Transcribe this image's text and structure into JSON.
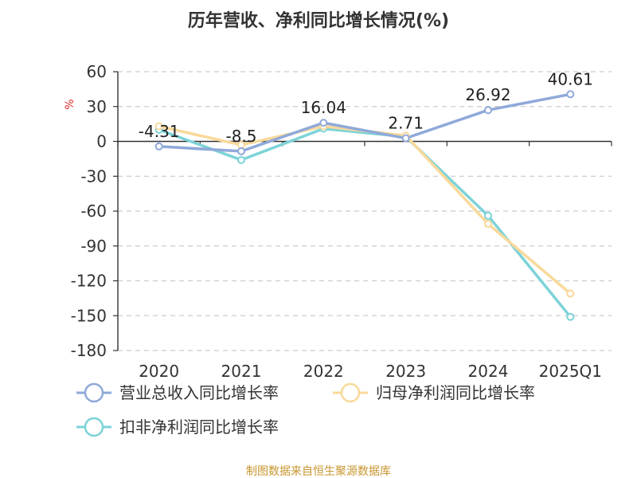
{
  "chart_data": {
    "type": "line",
    "title": "历年营收、净利同比增长情况(%)",
    "ylabel": "%",
    "categories": [
      "2020",
      "2021",
      "2022",
      "2023",
      "2024",
      "2025Q1"
    ],
    "ylim": [
      -180,
      60
    ],
    "yticks": [
      60,
      30,
      0,
      -30,
      -60,
      -90,
      -120,
      -150,
      -180
    ],
    "grid": true,
    "legend_position": "bottom",
    "series": [
      {
        "name": "营业总收入同比增长率",
        "color": "#8fa9d9",
        "values": [
          -4.31,
          -8.5,
          16.04,
          2.71,
          26.92,
          40.61
        ],
        "labels": [
          "-4.31",
          "-8.5",
          "16.04",
          "2.71",
          "26.92",
          "40.61"
        ]
      },
      {
        "name": "归母净利润同比增长率",
        "color": "#f9d99b",
        "values": [
          13,
          -3,
          13,
          5,
          -71,
          -131
        ],
        "labels": []
      },
      {
        "name": "扣非净利润同比增长率",
        "color": "#7dd3d8",
        "values": [
          10,
          -16,
          11,
          4,
          -64,
          -151
        ],
        "labels": []
      }
    ]
  },
  "footer": {
    "source": "制图数据来自恒生聚源数据库"
  }
}
